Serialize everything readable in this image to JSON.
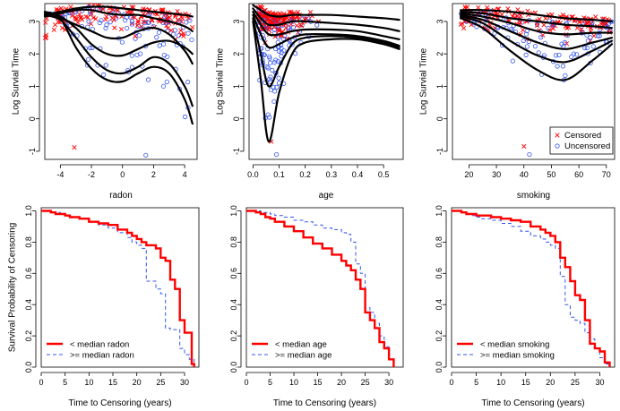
{
  "chart_data": [
    {
      "type": "scatter",
      "id": "radon",
      "xlabel": "radon",
      "ylabel": "Log Survial Time",
      "xlim": [
        -5,
        4.8
      ],
      "ylim": [
        -1.25,
        3.55
      ],
      "xticks": [
        -4,
        -2,
        0,
        2,
        4
      ],
      "yticks": [
        -1,
        0,
        1,
        2,
        3
      ],
      "outliers": [
        {
          "x": -3.1,
          "y": -0.88,
          "kind": "censored"
        },
        {
          "x": 1.5,
          "y": -1.12,
          "kind": "uncensored"
        }
      ],
      "curves": [
        {
          "x": [
            -5,
            -4,
            -3,
            -2,
            -1,
            0,
            1,
            2,
            3,
            4,
            4.5
          ],
          "y": [
            3.2,
            3.3,
            3.4,
            3.45,
            3.45,
            3.4,
            3.35,
            3.3,
            3.25,
            3.2,
            3.15
          ]
        },
        {
          "x": [
            -5,
            -4,
            -3,
            -2,
            -1,
            0,
            1,
            2,
            3,
            4,
            4.5
          ],
          "y": [
            3.15,
            3.25,
            3.35,
            3.35,
            3.25,
            3.2,
            3.2,
            3.1,
            3.0,
            2.85,
            2.7
          ]
        },
        {
          "x": [
            -5,
            -4,
            -3,
            -2,
            -1,
            0,
            1,
            2,
            3,
            4,
            4.5
          ],
          "y": [
            3.2,
            3.1,
            2.9,
            2.7,
            2.5,
            2.5,
            2.7,
            2.8,
            2.6,
            2.1,
            1.7
          ]
        },
        {
          "x": [
            -5,
            -4,
            -3,
            -2,
            -1,
            0,
            1,
            2,
            3,
            4,
            4.5
          ],
          "y": [
            3.2,
            3.05,
            2.5,
            1.9,
            1.5,
            1.4,
            1.6,
            1.9,
            1.7,
            1.0,
            0.4
          ]
        },
        {
          "x": [
            -5,
            -4,
            -3,
            -2,
            -1,
            0,
            1,
            2,
            3,
            4,
            4.5
          ],
          "y": [
            3.25,
            3.15,
            2.8,
            2.3,
            2.0,
            1.95,
            2.15,
            2.35,
            2.4,
            2.2,
            2.0
          ]
        },
        {
          "x": [
            -5,
            -4,
            -3,
            -2,
            -1,
            0,
            1,
            2,
            3,
            4,
            4.5
          ],
          "y": [
            3.3,
            3.1,
            2.2,
            1.55,
            1.2,
            1.15,
            1.4,
            1.6,
            1.4,
            0.6,
            -0.15
          ]
        }
      ]
    },
    {
      "type": "scatter",
      "id": "age",
      "xlabel": "age",
      "ylabel": "Log Survial Time",
      "xlim": [
        -0.015,
        0.575
      ],
      "ylim": [
        -1.25,
        3.55
      ],
      "xticks": [
        0.0,
        0.1,
        0.2,
        0.3,
        0.4,
        0.5
      ],
      "xticklabels": [
        "0.0",
        "0.1",
        "0.2",
        "0.3",
        "0.4",
        "0.5"
      ],
      "yticks": [
        -1,
        0,
        1,
        2,
        3
      ],
      "outliers": [
        {
          "x": 0.07,
          "y": -0.7,
          "kind": "censored"
        },
        {
          "x": 0.09,
          "y": -1.1,
          "kind": "uncensored"
        }
      ],
      "curves": [
        {
          "x": [
            0,
            0.03,
            0.06,
            0.1,
            0.15,
            0.2,
            0.3,
            0.4,
            0.5,
            0.56
          ],
          "y": [
            3.5,
            3.35,
            3.2,
            3.15,
            3.2,
            3.2,
            3.2,
            3.15,
            3.1,
            3.05
          ]
        },
        {
          "x": [
            0,
            0.03,
            0.06,
            0.1,
            0.15,
            0.2,
            0.3,
            0.4,
            0.5,
            0.56
          ],
          "y": [
            3.4,
            3.1,
            2.9,
            2.9,
            3.0,
            3.0,
            2.95,
            2.9,
            2.8,
            2.7
          ]
        },
        {
          "x": [
            0,
            0.03,
            0.06,
            0.1,
            0.15,
            0.2,
            0.3,
            0.4,
            0.5,
            0.56
          ],
          "y": [
            3.3,
            2.9,
            2.6,
            2.6,
            2.7,
            2.75,
            2.75,
            2.7,
            2.55,
            2.45
          ]
        },
        {
          "x": [
            0,
            0.03,
            0.06,
            0.1,
            0.15,
            0.2,
            0.3,
            0.4,
            0.5,
            0.56
          ],
          "y": [
            3.2,
            2.6,
            2.2,
            2.3,
            2.5,
            2.6,
            2.6,
            2.55,
            2.4,
            2.25
          ]
        },
        {
          "x": [
            0,
            0.03,
            0.06,
            0.1,
            0.15,
            0.2,
            0.3,
            0.4,
            0.5,
            0.56
          ],
          "y": [
            3.1,
            2.0,
            1.0,
            1.6,
            2.3,
            2.5,
            2.55,
            2.5,
            2.35,
            2.2
          ]
        },
        {
          "x": [
            0,
            0.03,
            0.06,
            0.1,
            0.15,
            0.2,
            0.3,
            0.4,
            0.5,
            0.56
          ],
          "y": [
            3.0,
            1.2,
            -0.7,
            0.8,
            2.0,
            2.35,
            2.45,
            2.45,
            2.3,
            2.15
          ]
        }
      ]
    },
    {
      "type": "scatter",
      "id": "smoking",
      "xlabel": "smoking",
      "ylabel": "Log Survial Time",
      "xlim": [
        14,
        73
      ],
      "ylim": [
        -1.25,
        3.55
      ],
      "xticks": [
        20,
        30,
        40,
        50,
        60,
        70
      ],
      "yticks": [
        -1,
        0,
        1,
        2,
        3
      ],
      "legend": {
        "position": "bottom-right",
        "entries": [
          "Censored",
          "Uncensored"
        ]
      },
      "outliers": [
        {
          "x": 40,
          "y": -0.85,
          "kind": "censored"
        },
        {
          "x": 42,
          "y": -1.1,
          "kind": "uncensored"
        }
      ],
      "curves": [
        {
          "x": [
            17,
            25,
            35,
            45,
            55,
            65,
            72
          ],
          "y": [
            3.35,
            3.35,
            3.3,
            3.2,
            3.1,
            3.05,
            3.0
          ]
        },
        {
          "x": [
            17,
            25,
            35,
            45,
            55,
            65,
            72
          ],
          "y": [
            3.3,
            3.25,
            3.1,
            3.0,
            2.9,
            2.85,
            2.8
          ]
        },
        {
          "x": [
            17,
            25,
            35,
            45,
            55,
            65,
            72
          ],
          "y": [
            3.25,
            3.15,
            2.95,
            2.7,
            2.6,
            2.65,
            2.65
          ]
        },
        {
          "x": [
            17,
            25,
            35,
            45,
            55,
            65,
            72
          ],
          "y": [
            3.2,
            3.05,
            2.7,
            2.35,
            2.15,
            2.35,
            2.5
          ]
        },
        {
          "x": [
            17,
            25,
            35,
            45,
            55,
            65,
            72
          ],
          "y": [
            3.15,
            2.95,
            2.4,
            1.95,
            1.75,
            2.1,
            2.4
          ]
        },
        {
          "x": [
            17,
            25,
            35,
            45,
            55,
            65,
            72
          ],
          "y": [
            3.1,
            2.8,
            2.1,
            1.5,
            1.2,
            1.8,
            2.3
          ]
        }
      ]
    },
    {
      "type": "line",
      "id": "km-radon",
      "xlabel": "Time to Censoring (years)",
      "ylabel": "Survival Probability of Censoring",
      "xlim": [
        0,
        33
      ],
      "ylim": [
        0,
        1.02
      ],
      "xticks": [
        0,
        5,
        10,
        15,
        20,
        25,
        30
      ],
      "yticks": [
        0.0,
        0.2,
        0.4,
        0.6,
        0.8,
        1.0
      ],
      "yticklabels": [
        "0.0",
        "0.2",
        "0.4",
        "0.6",
        "0.8",
        "1.0"
      ],
      "legend": {
        "position": "bottom-left"
      },
      "series": [
        {
          "name": "< median radon",
          "style": "solid",
          "color": "#ff0000",
          "x": [
            0,
            1,
            2,
            3,
            4,
            5,
            6,
            8,
            10,
            12,
            14,
            16,
            18,
            19,
            20,
            21,
            22,
            24,
            25,
            26,
            27,
            28,
            29,
            30,
            31,
            31.5,
            32
          ],
          "y": [
            1.0,
            1.0,
            0.99,
            0.98,
            0.98,
            0.97,
            0.96,
            0.95,
            0.93,
            0.92,
            0.91,
            0.88,
            0.86,
            0.84,
            0.82,
            0.8,
            0.78,
            0.76,
            0.7,
            0.68,
            0.56,
            0.5,
            0.3,
            0.22,
            0.22,
            0.02,
            0.0
          ]
        },
        {
          "name": ">= median radon",
          "style": "dashed",
          "color": "#3355ee",
          "x": [
            0,
            1,
            2,
            3,
            4,
            5,
            6,
            8,
            10,
            12,
            14,
            16,
            18,
            19,
            20,
            21,
            22,
            24,
            25,
            26,
            27,
            28,
            29,
            30,
            31,
            32
          ],
          "y": [
            1.0,
            1.0,
            0.99,
            0.99,
            0.98,
            0.97,
            0.96,
            0.95,
            0.93,
            0.91,
            0.89,
            0.86,
            0.83,
            0.8,
            0.78,
            0.76,
            0.55,
            0.5,
            0.47,
            0.25,
            0.24,
            0.24,
            0.12,
            0.08,
            0.05,
            0.0
          ]
        }
      ]
    },
    {
      "type": "line",
      "id": "km-age",
      "xlabel": "Time to Censoring (years)",
      "ylabel": "",
      "xlim": [
        0,
        33
      ],
      "ylim": [
        0,
        1.02
      ],
      "xticks": [
        0,
        5,
        10,
        15,
        20,
        25,
        30
      ],
      "yticks": [
        0.0,
        0.2,
        0.4,
        0.6,
        0.8,
        1.0
      ],
      "yticklabels": [
        "0.0",
        "0.2",
        "0.4",
        "0.6",
        "0.8",
        "1.0"
      ],
      "legend": {
        "position": "bottom-left"
      },
      "series": [
        {
          "name": "< median age",
          "style": "solid",
          "color": "#ff0000",
          "x": [
            0,
            1,
            2,
            3,
            4,
            5,
            6,
            8,
            10,
            12,
            14,
            16,
            18,
            20,
            21,
            22,
            23,
            24,
            25,
            26,
            27,
            28,
            29,
            30,
            31
          ],
          "y": [
            1.0,
            1.0,
            0.99,
            0.98,
            0.96,
            0.95,
            0.93,
            0.9,
            0.87,
            0.83,
            0.79,
            0.76,
            0.72,
            0.68,
            0.65,
            0.62,
            0.56,
            0.5,
            0.35,
            0.3,
            0.25,
            0.16,
            0.12,
            0.05,
            0.0
          ]
        },
        {
          "name": ">= median age",
          "style": "dashed",
          "color": "#3355ee",
          "x": [
            0,
            1,
            2,
            3,
            4,
            5,
            6,
            8,
            10,
            12,
            14,
            16,
            18,
            20,
            21,
            22,
            23,
            24,
            25,
            26,
            27,
            28,
            29,
            30,
            31
          ],
          "y": [
            1.0,
            1.0,
            1.0,
            0.99,
            0.99,
            0.98,
            0.97,
            0.96,
            0.94,
            0.93,
            0.91,
            0.89,
            0.88,
            0.86,
            0.85,
            0.8,
            0.66,
            0.6,
            0.38,
            0.35,
            0.28,
            0.2,
            0.13,
            0.05,
            0.0
          ]
        }
      ]
    },
    {
      "type": "line",
      "id": "km-smoking",
      "xlabel": "Time to Censoring (years)",
      "ylabel": "",
      "xlim": [
        0,
        33
      ],
      "ylim": [
        0,
        1.02
      ],
      "xticks": [
        0,
        5,
        10,
        15,
        20,
        25,
        30
      ],
      "yticks": [
        0.0,
        0.2,
        0.4,
        0.6,
        0.8,
        1.0
      ],
      "yticklabels": [
        "0.0",
        "0.2",
        "0.4",
        "0.6",
        "0.8",
        "1.0"
      ],
      "legend": {
        "position": "bottom-left"
      },
      "series": [
        {
          "name": "< median smoking",
          "style": "solid",
          "color": "#ff0000",
          "x": [
            0,
            1,
            2,
            3,
            4,
            5,
            6,
            8,
            10,
            12,
            14,
            16,
            18,
            19,
            20,
            21,
            22,
            23,
            24,
            25,
            26,
            27,
            28,
            29,
            30,
            31,
            32
          ],
          "y": [
            1.0,
            1.0,
            0.99,
            0.98,
            0.98,
            0.97,
            0.97,
            0.96,
            0.95,
            0.94,
            0.93,
            0.9,
            0.88,
            0.86,
            0.84,
            0.8,
            0.7,
            0.64,
            0.55,
            0.46,
            0.43,
            0.3,
            0.15,
            0.12,
            0.1,
            0.03,
            0.0
          ]
        },
        {
          "name": ">= median smoking",
          "style": "dashed",
          "color": "#3355ee",
          "x": [
            0,
            1,
            2,
            3,
            4,
            5,
            6,
            8,
            10,
            12,
            14,
            16,
            18,
            19,
            20,
            21,
            22,
            23,
            24,
            25,
            26,
            27,
            28,
            29,
            30,
            31,
            32
          ],
          "y": [
            1.0,
            1.0,
            0.99,
            0.98,
            0.97,
            0.96,
            0.95,
            0.94,
            0.92,
            0.9,
            0.87,
            0.84,
            0.82,
            0.8,
            0.78,
            0.76,
            0.58,
            0.4,
            0.32,
            0.3,
            0.28,
            0.22,
            0.18,
            0.12,
            0.06,
            0.02,
            0.0
          ]
        }
      ]
    }
  ],
  "legend_labels": {
    "censored": "Censored",
    "uncensored": "Uncensored"
  },
  "colors": {
    "censored": "#ff0000",
    "uncensored": "#3355ee",
    "curve": "#000000"
  }
}
